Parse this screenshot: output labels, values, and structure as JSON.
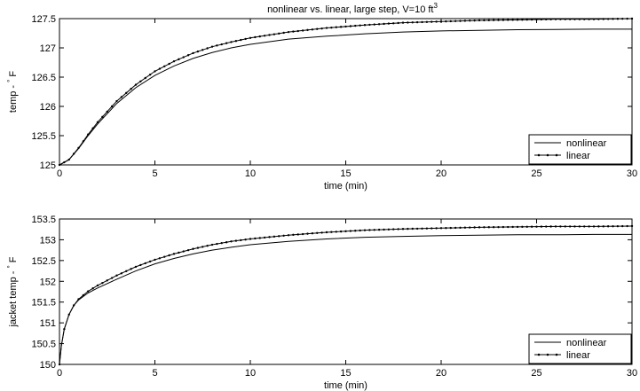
{
  "chart_data": [
    {
      "type": "line",
      "title": "nonlinear vs. linear, large step, V=10 ft",
      "title_sup": "3",
      "xlabel": "time (min)",
      "ylabel_main": "temp - ",
      "ylabel_deg": "°",
      "ylabel_unit": " F",
      "xlim": [
        0,
        30
      ],
      "ylim": [
        125,
        127.5
      ],
      "xticks": [
        "0",
        "5",
        "10",
        "15",
        "20",
        "25",
        "30"
      ],
      "yticks": [
        "125",
        "125.5",
        "126",
        "126.5",
        "127",
        "127.5"
      ],
      "legend_position": "bottom-right",
      "grid": false,
      "series": [
        {
          "name": "nonlinear",
          "marker": "none",
          "x": [
            0,
            0.5,
            1,
            1.5,
            2,
            3,
            4,
            5,
            6,
            7,
            8,
            9,
            10,
            12,
            14,
            16,
            18,
            20,
            22,
            24,
            26,
            28,
            30
          ],
          "y": [
            125,
            125.09,
            125.28,
            125.5,
            125.7,
            126.05,
            126.32,
            126.53,
            126.69,
            126.82,
            126.92,
            127.0,
            127.06,
            127.15,
            127.2,
            127.24,
            127.27,
            127.29,
            127.3,
            127.31,
            127.315,
            127.32,
            127.32
          ]
        },
        {
          "name": "linear",
          "marker": "dot",
          "x": [
            0,
            0.5,
            1,
            1.5,
            2,
            3,
            4,
            5,
            6,
            7,
            8,
            9,
            10,
            12,
            14,
            16,
            18,
            20,
            22,
            24,
            26,
            28,
            30
          ],
          "y": [
            125,
            125.09,
            125.29,
            125.52,
            125.73,
            126.09,
            126.37,
            126.6,
            126.77,
            126.91,
            127.02,
            127.1,
            127.17,
            127.27,
            127.34,
            127.39,
            127.43,
            127.45,
            127.47,
            127.48,
            127.49,
            127.49,
            127.5
          ]
        }
      ]
    },
    {
      "type": "line",
      "title": "",
      "xlabel": "time (min)",
      "ylabel_main": "jacket temp - ",
      "ylabel_deg": "°",
      "ylabel_unit": " F",
      "xlim": [
        0,
        30
      ],
      "ylim": [
        150,
        153.5
      ],
      "xticks": [
        "0",
        "5",
        "10",
        "15",
        "20",
        "25",
        "30"
      ],
      "yticks": [
        "150",
        "150.5",
        "151",
        "151.5",
        "152",
        "152.5",
        "153",
        "153.5"
      ],
      "legend_position": "bottom-right",
      "grid": false,
      "series": [
        {
          "name": "nonlinear",
          "marker": "none",
          "x": [
            0,
            0.1,
            0.25,
            0.5,
            0.75,
            1,
            1.5,
            2,
            3,
            4,
            5,
            6,
            7,
            8,
            9,
            10,
            12,
            14,
            16,
            18,
            20,
            22,
            24,
            26,
            28,
            30
          ],
          "y": [
            150,
            150.45,
            150.85,
            151.2,
            151.42,
            151.55,
            151.72,
            151.84,
            152.05,
            152.25,
            152.42,
            152.55,
            152.66,
            152.75,
            152.82,
            152.88,
            152.96,
            153.02,
            153.06,
            153.08,
            153.1,
            153.11,
            153.12,
            153.12,
            153.13,
            153.13
          ]
        },
        {
          "name": "linear",
          "marker": "dot",
          "x": [
            0,
            0.1,
            0.25,
            0.5,
            0.75,
            1,
            1.5,
            2,
            3,
            4,
            5,
            6,
            7,
            8,
            9,
            10,
            12,
            14,
            16,
            18,
            20,
            22,
            24,
            26,
            28,
            30
          ],
          "y": [
            150,
            150.45,
            150.85,
            151.2,
            151.42,
            151.57,
            151.76,
            151.9,
            152.14,
            152.35,
            152.52,
            152.66,
            152.78,
            152.88,
            152.96,
            153.02,
            153.11,
            153.18,
            153.23,
            153.26,
            153.28,
            153.3,
            153.31,
            153.32,
            153.32,
            153.33
          ]
        }
      ]
    }
  ]
}
